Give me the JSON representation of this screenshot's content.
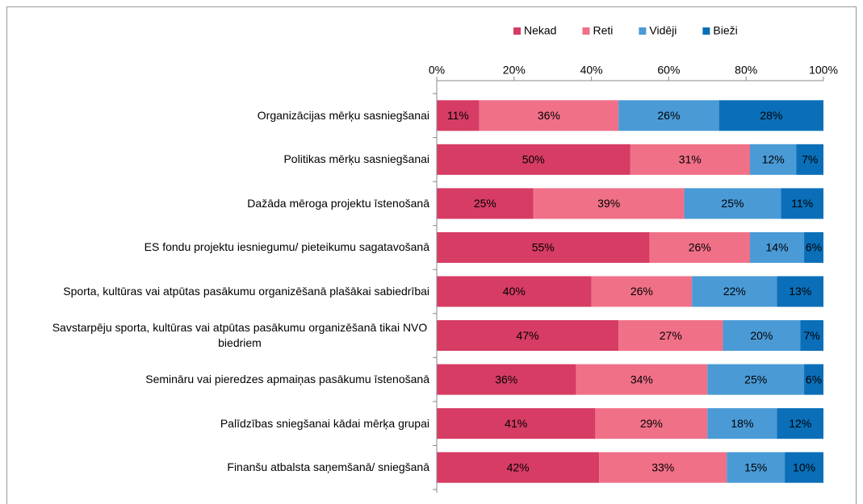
{
  "chart_data": {
    "type": "stacked_barh",
    "categories": [
      "Organizācijas mērķu sasniegšanai",
      "Politikas mērķu sasniegšanai",
      "Dažāda mēroga projektu īstenošanā",
      "ES fondu projektu iesniegumu/ pieteikumu sagatavošanā",
      "Sporta, kultūras vai atpūtas pasākumu organizēšanā plašākai sabiedrībai",
      "Savstarpēju sporta, kultūras vai atpūtas pasākumu organizēšanā tikai NVO biedriem",
      "Semināru vai pieredzes apmaiņas pasākumu īstenošanā",
      "Palīdzības sniegšanai kādai mērķa grupai",
      "Finanšu atbalsta saņemšanā/ sniegšanā"
    ],
    "series": [
      {
        "name": "Nekad",
        "color": "#d63c64",
        "values": [
          11,
          50,
          25,
          55,
          40,
          47,
          36,
          41,
          42
        ],
        "value_labels": [
          "11%",
          "50%",
          "25%",
          "55%",
          "40%",
          "47%",
          "36%",
          "41%",
          "42%"
        ]
      },
      {
        "name": "Reti",
        "color": "#f07088",
        "values": [
          36,
          31,
          39,
          26,
          26,
          27,
          34,
          29,
          33
        ],
        "value_labels": [
          "36%",
          "31%",
          "39%",
          "26%",
          "26%",
          "27%",
          "34%",
          "29%",
          "33%"
        ]
      },
      {
        "name": "Vidēji",
        "color": "#4a9ad6",
        "values": [
          26,
          12,
          25,
          14,
          22,
          20,
          25,
          18,
          15
        ],
        "value_labels": [
          "26%",
          "12%",
          "25%",
          "14%",
          "22%",
          "20%",
          "25%",
          "18%",
          "15%"
        ]
      },
      {
        "name": "Bieži",
        "color": "#0a6fb8",
        "values": [
          28,
          7,
          11,
          6,
          13,
          7,
          6,
          12,
          10
        ],
        "value_labels": [
          "28%",
          "7%",
          "11%",
          "6%",
          "13%",
          "7%",
          "6%",
          "12%",
          "10%"
        ]
      }
    ],
    "xlim": [
      0,
      100
    ],
    "xticks": [
      {
        "value": 0,
        "label": "0%"
      },
      {
        "value": 20,
        "label": "20%"
      },
      {
        "value": 40,
        "label": "40%"
      },
      {
        "value": 60,
        "label": "60%"
      },
      {
        "value": 80,
        "label": "80%"
      },
      {
        "value": 100,
        "label": "100%"
      }
    ],
    "legend": "top"
  }
}
